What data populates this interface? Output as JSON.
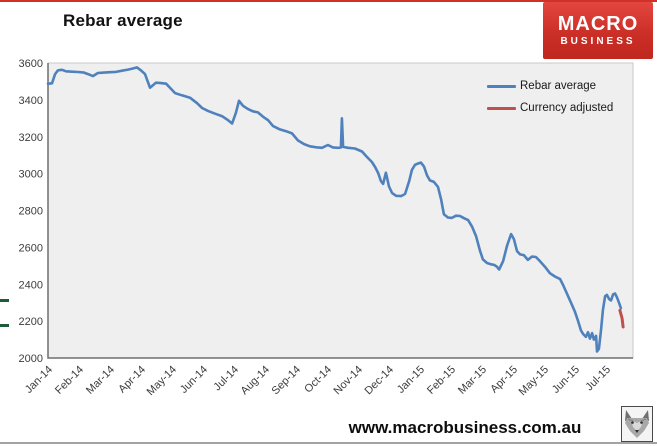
{
  "header": {
    "title": "Rebar average",
    "logo": {
      "line1": "MACRO",
      "line2": "BUSINESS",
      "bg_color": "#cb2f27",
      "text_color": "#ffffff"
    }
  },
  "footer": {
    "website": "www.macrobusiness.com.au"
  },
  "chart_data": {
    "type": "line",
    "title": "Rebar average",
    "xlabel": "",
    "ylabel": "",
    "ylim": [
      2000,
      3600
    ],
    "y_ticks": [
      2000,
      2200,
      2400,
      2600,
      2800,
      3000,
      3200,
      3400,
      3600
    ],
    "x_tick_labels": [
      "Jan-14",
      "Feb-14",
      "Mar-14",
      "Apr-14",
      "May-14",
      "Jun-14",
      "Jul-14",
      "Aug-14",
      "Sep-14",
      "Oct-14",
      "Nov-14",
      "Dec-14",
      "Jan-15",
      "Feb-15",
      "Mar-15",
      "Apr-15",
      "May-15",
      "Jun-15",
      "Jul-15"
    ],
    "x_unit": "fractional month index, 0 = Jan-14 (weekly price data)",
    "grid": false,
    "plot_bg_color": "#efefef",
    "axis_color": "#6e6e6e",
    "legend": {
      "position": "inside-top-right",
      "entries": [
        {
          "label": "Rebar average",
          "color": "#4f81bd"
        },
        {
          "label": "Currency adjusted",
          "color": "#c0504d"
        }
      ]
    },
    "left_edge_marks": {
      "color": "#1e5c38",
      "values": [
        2315,
        2180
      ]
    },
    "series": [
      {
        "name": "Rebar average",
        "color": "#4f81bd",
        "width": 2.6,
        "points": [
          [
            0.0,
            3488
          ],
          [
            0.13,
            3490
          ],
          [
            0.23,
            3540
          ],
          [
            0.32,
            3560
          ],
          [
            0.45,
            3563
          ],
          [
            0.58,
            3555
          ],
          [
            0.77,
            3553
          ],
          [
            0.97,
            3551
          ],
          [
            1.16,
            3548
          ],
          [
            1.29,
            3540
          ],
          [
            1.45,
            3529
          ],
          [
            1.61,
            3546
          ],
          [
            1.81,
            3548
          ],
          [
            2.0,
            3550
          ],
          [
            2.19,
            3552
          ],
          [
            2.39,
            3558
          ],
          [
            2.58,
            3564
          ],
          [
            2.74,
            3570
          ],
          [
            2.87,
            3576
          ],
          [
            3.0,
            3560
          ],
          [
            3.13,
            3540
          ],
          [
            3.29,
            3466
          ],
          [
            3.39,
            3480
          ],
          [
            3.48,
            3493
          ],
          [
            3.65,
            3491
          ],
          [
            3.81,
            3488
          ],
          [
            3.94,
            3465
          ],
          [
            4.1,
            3437
          ],
          [
            4.32,
            3425
          ],
          [
            4.58,
            3412
          ],
          [
            4.81,
            3382
          ],
          [
            4.97,
            3356
          ],
          [
            5.16,
            3340
          ],
          [
            5.39,
            3325
          ],
          [
            5.61,
            3312
          ],
          [
            5.81,
            3290
          ],
          [
            5.94,
            3272
          ],
          [
            6.06,
            3330
          ],
          [
            6.16,
            3395
          ],
          [
            6.29,
            3368
          ],
          [
            6.45,
            3350
          ],
          [
            6.61,
            3338
          ],
          [
            6.77,
            3332
          ],
          [
            6.94,
            3308
          ],
          [
            7.1,
            3290
          ],
          [
            7.26,
            3258
          ],
          [
            7.48,
            3240
          ],
          [
            7.68,
            3230
          ],
          [
            7.87,
            3218
          ],
          [
            8.06,
            3180
          ],
          [
            8.26,
            3160
          ],
          [
            8.45,
            3148
          ],
          [
            8.65,
            3143
          ],
          [
            8.84,
            3140
          ],
          [
            9.03,
            3155
          ],
          [
            9.19,
            3142
          ],
          [
            9.35,
            3140
          ],
          [
            9.45,
            3142
          ],
          [
            9.48,
            3300
          ],
          [
            9.52,
            3145
          ],
          [
            9.68,
            3140
          ],
          [
            9.9,
            3136
          ],
          [
            10.13,
            3120
          ],
          [
            10.29,
            3090
          ],
          [
            10.45,
            3063
          ],
          [
            10.55,
            3036
          ],
          [
            10.65,
            3003
          ],
          [
            10.74,
            2960
          ],
          [
            10.81,
            2944
          ],
          [
            10.9,
            3005
          ],
          [
            11.0,
            2930
          ],
          [
            11.1,
            2895
          ],
          [
            11.23,
            2880
          ],
          [
            11.39,
            2878
          ],
          [
            11.52,
            2890
          ],
          [
            11.65,
            2960
          ],
          [
            11.74,
            3020
          ],
          [
            11.84,
            3048
          ],
          [
            11.94,
            3055
          ],
          [
            12.03,
            3060
          ],
          [
            12.13,
            3038
          ],
          [
            12.23,
            2990
          ],
          [
            12.32,
            2963
          ],
          [
            12.45,
            2955
          ],
          [
            12.58,
            2928
          ],
          [
            12.68,
            2860
          ],
          [
            12.77,
            2780
          ],
          [
            12.9,
            2762
          ],
          [
            13.03,
            2760
          ],
          [
            13.16,
            2772
          ],
          [
            13.29,
            2770
          ],
          [
            13.42,
            2758
          ],
          [
            13.55,
            2748
          ],
          [
            13.68,
            2712
          ],
          [
            13.81,
            2660
          ],
          [
            13.94,
            2580
          ],
          [
            14.03,
            2535
          ],
          [
            14.16,
            2515
          ],
          [
            14.29,
            2508
          ],
          [
            14.39,
            2505
          ],
          [
            14.48,
            2495
          ],
          [
            14.55,
            2480
          ],
          [
            14.68,
            2525
          ],
          [
            14.81,
            2610
          ],
          [
            14.94,
            2672
          ],
          [
            15.03,
            2645
          ],
          [
            15.13,
            2580
          ],
          [
            15.23,
            2562
          ],
          [
            15.35,
            2558
          ],
          [
            15.48,
            2532
          ],
          [
            15.61,
            2550
          ],
          [
            15.74,
            2548
          ],
          [
            15.87,
            2525
          ],
          [
            16.03,
            2495
          ],
          [
            16.19,
            2460
          ],
          [
            16.35,
            2442
          ],
          [
            16.52,
            2428
          ],
          [
            16.61,
            2398
          ],
          [
            16.74,
            2350
          ],
          [
            16.87,
            2300
          ],
          [
            17.0,
            2250
          ],
          [
            17.1,
            2200
          ],
          [
            17.19,
            2150
          ],
          [
            17.26,
            2130
          ],
          [
            17.35,
            2115
          ],
          [
            17.42,
            2140
          ],
          [
            17.48,
            2105
          ],
          [
            17.55,
            2135
          ],
          [
            17.61,
            2100
          ],
          [
            17.68,
            2120
          ],
          [
            17.71,
            2035
          ],
          [
            17.77,
            2050
          ],
          [
            17.84,
            2150
          ],
          [
            17.9,
            2260
          ],
          [
            17.97,
            2335
          ],
          [
            18.03,
            2342
          ],
          [
            18.1,
            2320
          ],
          [
            18.16,
            2312
          ],
          [
            18.23,
            2345
          ],
          [
            18.29,
            2350
          ],
          [
            18.35,
            2330
          ],
          [
            18.42,
            2300
          ],
          [
            18.48,
            2270
          ]
        ]
      },
      {
        "name": "Currency adjusted",
        "color": "#c0504d",
        "width": 3,
        "points": [
          [
            18.45,
            2258
          ],
          [
            18.52,
            2215
          ],
          [
            18.55,
            2168
          ]
        ]
      }
    ]
  }
}
